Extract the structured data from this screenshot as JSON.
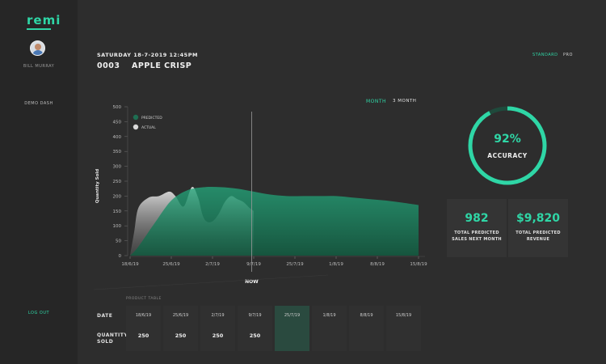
{
  "sidebar": {
    "logo": "remi",
    "user_name": "BILL MURRAY",
    "nav_item": "DEMO DASH",
    "logout": "LOG OUT"
  },
  "header": {
    "datetime": "SATURDAY 18-7-2019 12:45PM",
    "product_id": "0003",
    "product_name": "APPLE CRISP",
    "modes": [
      "STANDARD",
      "PRO"
    ],
    "active_mode": "STANDARD"
  },
  "range_tabs": [
    "MONTH",
    "3 MONTH"
  ],
  "active_range": "MONTH",
  "chart_data": {
    "type": "area",
    "ylabel": "Quantity Sold",
    "ylim": [
      0,
      500
    ],
    "yticks": [
      "0",
      "50",
      "100",
      "150",
      "200",
      "250",
      "300",
      "350",
      "400",
      "450",
      "500"
    ],
    "xtick_labels": [
      "18/6/19",
      "25/6/19",
      "2/7/19",
      "9/7/19",
      "25/7/19",
      "1/8/19",
      "8/8/19",
      "15/8/19"
    ],
    "now_label": "NOW",
    "legend": [
      "PREDICTED",
      "ACTUAL"
    ],
    "colors": {
      "predicted": "#1e6e52",
      "actual": "#d8d8d8",
      "accent": "#2fd6a6"
    },
    "series": [
      {
        "name": "PREDICTED",
        "x": [
          0,
          0.2,
          0.6,
          1.0,
          1.4,
          1.8,
          2.2,
          2.6,
          3.0,
          3.4,
          3.8,
          4.2,
          4.6,
          5.0,
          5.4,
          5.8,
          6.2,
          6.6,
          7.0
        ],
        "values": [
          0,
          30,
          110,
          185,
          220,
          230,
          230,
          225,
          215,
          205,
          200,
          200,
          200,
          200,
          195,
          190,
          185,
          178,
          170
        ]
      },
      {
        "name": "ACTUAL",
        "x": [
          0,
          0.1,
          0.2,
          0.45,
          0.7,
          0.95,
          1.1,
          1.3,
          1.5,
          1.65,
          1.75,
          1.85,
          2.0,
          2.15,
          2.3,
          2.45,
          2.6,
          2.75,
          2.9,
          3.0
        ],
        "values": [
          0,
          80,
          160,
          195,
          200,
          215,
          200,
          165,
          230,
          195,
          140,
          115,
          115,
          140,
          180,
          200,
          190,
          180,
          160,
          150
        ]
      }
    ],
    "now_x": 2.95
  },
  "accuracy": {
    "value": "92%",
    "label": "ACCURACY",
    "fraction": 0.92
  },
  "stats": [
    {
      "value": "982",
      "label": "TOTAL PREDICTED SALES NEXT MONTH"
    },
    {
      "value": "$9,820",
      "label": "TOTAL PREDICTED REVENUE"
    }
  ],
  "product_table": {
    "label": "PRODUCT TABLE",
    "row_labels": {
      "date": "DATE",
      "qty": "QUANTITY SOLD"
    },
    "columns": [
      {
        "date": "18/6/19",
        "qty": "250"
      },
      {
        "date": "25/6/19",
        "qty": "250"
      },
      {
        "date": "2/7/19",
        "qty": "250"
      },
      {
        "date": "9/7/19",
        "qty": "250"
      },
      {
        "date": "25/7/19",
        "qty": ""
      },
      {
        "date": "1/8/19",
        "qty": ""
      },
      {
        "date": "8/8/19",
        "qty": ""
      },
      {
        "date": "15/8/19",
        "qty": ""
      }
    ]
  }
}
